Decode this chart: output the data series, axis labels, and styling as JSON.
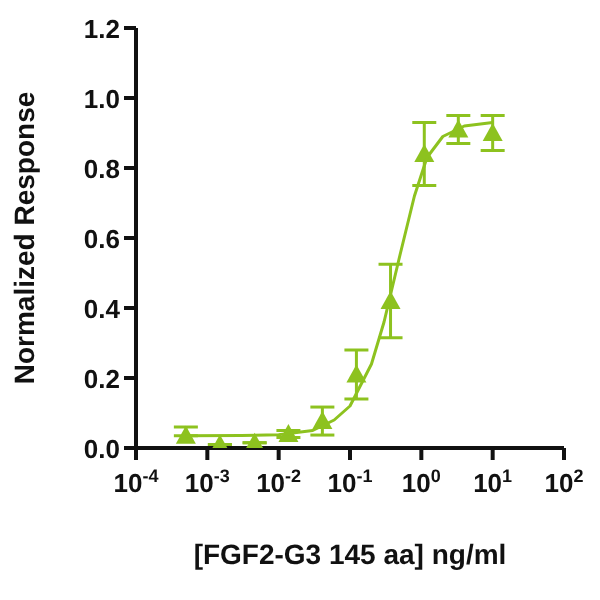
{
  "chart_data": {
    "type": "scatter",
    "xlabel": "[FGF2-G3 145 aa] ng/ml",
    "ylabel": "Normalized Response",
    "log": "x",
    "grid": false,
    "legend": false,
    "xlim": [
      0.0001,
      100
    ],
    "xticks": [
      {
        "value": 0.0001,
        "label": "10$^{-4}$"
      },
      {
        "value": 0.001,
        "label": "10$^{-3}$"
      },
      {
        "value": 0.01,
        "label": "10$^{-2}$"
      },
      {
        "value": 0.1,
        "label": "10$^{-1}$"
      },
      {
        "value": 1,
        "label": "10$^{0}$"
      },
      {
        "value": 10,
        "label": "10$^{1}$"
      },
      {
        "value": 100,
        "label": "10$^{2}$"
      }
    ],
    "ylim": [
      0,
      1.2
    ],
    "yticks": [
      {
        "value": 0,
        "label": "0.0"
      },
      {
        "value": 0.2,
        "label": "0.2"
      },
      {
        "value": 0.4,
        "label": "0.4"
      },
      {
        "value": 0.6,
        "label": "0.6"
      },
      {
        "value": 0.8,
        "label": "0.8"
      },
      {
        "value": 1,
        "label": "1.0"
      },
      {
        "value": 1.2,
        "label": "1.2"
      }
    ],
    "series": [
      {
        "color": "#8dc21f",
        "marker": "triangle",
        "x": [
          0.0005,
          0.0015,
          0.0046,
          0.0137,
          0.041,
          0.123,
          0.37,
          1.1,
          3.3,
          10
        ],
        "values": [
          0.035,
          0.01,
          0.015,
          0.04,
          0.077,
          0.21,
          0.42,
          0.84,
          0.91,
          0.9
        ],
        "errors": [
          [
            0.035,
            0.06
          ],
          null,
          null,
          0.01,
          0.04,
          0.07,
          0.105,
          0.09,
          0.04,
          0.05
        ]
      },
      {
        "type": "line",
        "color": "#8dc21f",
        "marker": "none",
        "x": [
          0.0005,
          0.003,
          0.01,
          0.03,
          0.06,
          0.1,
          0.2,
          0.3,
          0.5,
          0.8,
          1.2,
          2,
          4,
          10
        ],
        "values": [
          0.035,
          0.036,
          0.038,
          0.05,
          0.08,
          0.12,
          0.24,
          0.36,
          0.55,
          0.72,
          0.83,
          0.89,
          0.92,
          0.93
        ]
      }
    ]
  }
}
